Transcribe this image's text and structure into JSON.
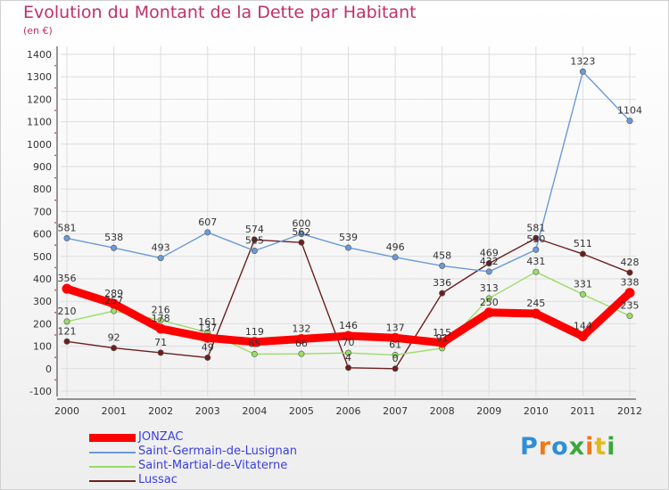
{
  "title": "Evolution du Montant de la Dette par Habitant",
  "subtitle": "(en €)",
  "logo": {
    "text": "Proxiti",
    "letter_colors": [
      "#2f8ed8",
      "#f07a1a",
      "#2f8ed8",
      "#3aa83a",
      "#f07a1a",
      "#e3b81c",
      "#3aa83a"
    ]
  },
  "chart_data": {
    "type": "line",
    "x": [
      "2000",
      "2001",
      "2002",
      "2003",
      "2004",
      "2005",
      "2006",
      "2007",
      "2008",
      "2009",
      "2010",
      "2011",
      "2012"
    ],
    "ylim": [
      -100,
      1400
    ],
    "yticks": [
      "-100",
      "0",
      "100",
      "200",
      "300",
      "400",
      "500",
      "600",
      "700",
      "800",
      "900",
      "1000",
      "1100",
      "1200",
      "1300",
      "1400"
    ],
    "grid": true,
    "legend_position": "bottom-left",
    "series": [
      {
        "name": "Lussac",
        "color": "#6b1f1f",
        "values": [
          121,
          92,
          71,
          49,
          574,
          562,
          4,
          0,
          336,
          469,
          581,
          511,
          428
        ],
        "labels": [
          "121",
          "92",
          "71",
          "49",
          "574",
          "562",
          "4",
          "0",
          "336",
          "469",
          "581",
          "511",
          "428"
        ]
      },
      {
        "name": "Saint-Martial-de-Vitaterne",
        "color": "#99dd66",
        "values": [
          210,
          257,
          216,
          161,
          65,
          66,
          70,
          61,
          91,
          313,
          431,
          331,
          235
        ],
        "labels": [
          "210",
          "257",
          "216",
          "161",
          "65",
          "66",
          "70",
          "61",
          "91",
          "313",
          "431",
          "331",
          "235"
        ]
      },
      {
        "name": "Saint-Germain-de-Lusignan",
        "color": "#6a9ad8",
        "values": [
          581,
          538,
          493,
          607,
          525,
          600,
          539,
          496,
          458,
          432,
          530,
          1323,
          1104
        ],
        "labels": [
          "581",
          "538",
          "493",
          "607",
          "525",
          "600",
          "539",
          "496",
          "458",
          "432",
          "530",
          "1323",
          "1104"
        ]
      },
      {
        "name": "JONZAC",
        "color": "#ff0000",
        "values": [
          356,
          289,
          178,
          137,
          119,
          132,
          146,
          137,
          115,
          250,
          245,
          144,
          338
        ],
        "labels": [
          "356",
          "289",
          "178",
          "137",
          "119",
          "132",
          "146",
          "137",
          "115",
          "250",
          "245",
          "144",
          "338"
        ]
      }
    ]
  }
}
